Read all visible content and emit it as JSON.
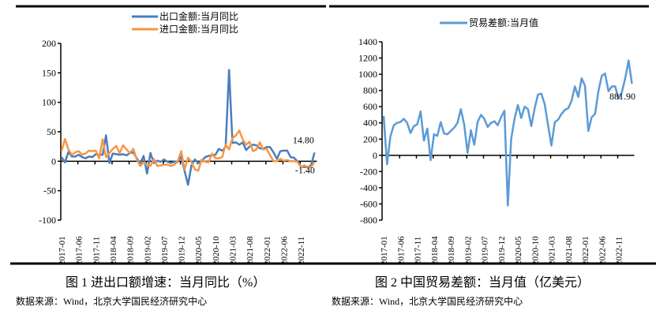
{
  "chart_data": [
    {
      "type": "line",
      "title": "图 1 进出口额增速：当月同比（%）",
      "source": "数据来源：Wind，北京大学国民经济研究中心",
      "ylim": [
        -100,
        200
      ],
      "yticks": [
        "200",
        "150",
        "100",
        "50",
        "0",
        "-50",
        "-100"
      ],
      "ytick_values": [
        200,
        150,
        100,
        50,
        0,
        -50,
        -100
      ],
      "xticks": [
        "2017-01",
        "2017-06",
        "2017-11",
        "2018-04",
        "2018-09",
        "2019-02",
        "2019-07",
        "2019-12",
        "2020-05",
        "2020-10",
        "2021-03",
        "2021-08",
        "2022-01",
        "2022-06",
        "2022-11"
      ],
      "x_start": "2017-01",
      "x_end": "2023-03",
      "legend_position": "top-center",
      "series": [
        {
          "name": "出口金额:当月同比",
          "color": "#4a7ebb",
          "end_label": "14.80",
          "values": [
            7,
            -2,
            16,
            8,
            8,
            11,
            7,
            5,
            8,
            7,
            12,
            11,
            11,
            44,
            -3,
            13,
            12,
            11,
            12,
            10,
            14,
            15,
            5,
            -4,
            9,
            -21,
            14,
            -3,
            1,
            -1,
            3,
            -1,
            -3,
            -1,
            -1,
            8,
            -17,
            -40,
            -7,
            3,
            -3,
            0,
            7,
            9,
            10,
            11,
            21,
            18,
            24,
            155,
            31,
            32,
            28,
            32,
            19,
            25,
            28,
            27,
            22,
            21,
            24,
            24,
            15,
            4,
            17,
            18,
            18,
            7,
            6,
            -0.3,
            -9,
            -10,
            -10,
            -7,
            14.8
          ]
        },
        {
          "name": "进口金额:当月同比",
          "color": "#f79646",
          "end_label": "-1.40",
          "values": [
            17,
            38,
            20,
            11,
            15,
            17,
            11,
            13,
            18,
            17,
            18,
            5,
            37,
            7,
            14,
            21,
            26,
            14,
            27,
            20,
            14,
            21,
            3,
            -8,
            -2,
            -5,
            -8,
            4,
            -8,
            -7,
            -6,
            -6,
            -8,
            -6,
            0,
            17,
            -14,
            6,
            -1,
            -14,
            -16,
            3,
            -1,
            -2,
            13,
            5,
            5,
            7,
            28,
            20,
            39,
            44,
            52,
            37,
            28,
            33,
            17,
            20,
            32,
            20,
            21,
            10,
            0,
            0,
            4,
            1,
            2,
            0,
            0,
            -1,
            -10,
            -7,
            -10,
            -10,
            -1.4
          ]
        }
      ]
    },
    {
      "type": "line",
      "title": "图 2 中国贸易差额：当月值（亿美元）",
      "source": "数据来源：Wind，北京大学国民经济研究中心",
      "ylim": [
        -800,
        1400
      ],
      "yticks": [
        "1400",
        "1200",
        "1000",
        "800",
        "600",
        "400",
        "200",
        "0",
        "-200",
        "-400",
        "-600",
        "-800"
      ],
      "ytick_values": [
        1400,
        1200,
        1000,
        800,
        600,
        400,
        200,
        0,
        -200,
        -400,
        -600,
        -800
      ],
      "xticks": [
        "2017-01",
        "2017-06",
        "2017-11",
        "2018-04",
        "2018-09",
        "2019-02",
        "2019-07",
        "2019-12",
        "2020-05",
        "2020-10",
        "2021-03",
        "2021-08",
        "2022-01",
        "2022-06",
        "2022-11"
      ],
      "x_start": "2017-01",
      "x_end": "2023-03",
      "legend_position": "top-center",
      "series": [
        {
          "name": "贸易差额:当月值",
          "color": "#5b9bd5",
          "end_label": "881.90",
          "values": [
            485,
            -110,
            230,
            370,
            400,
            410,
            450,
            400,
            275,
            360,
            380,
            540,
            180,
            330,
            -60,
            260,
            240,
            410,
            270,
            260,
            300,
            340,
            400,
            570,
            380,
            30,
            310,
            130,
            410,
            500,
            450,
            350,
            400,
            420,
            370,
            470,
            550,
            -620,
            200,
            450,
            620,
            460,
            600,
            570,
            360,
            580,
            750,
            760,
            630,
            370,
            120,
            410,
            440,
            510,
            560,
            580,
            670,
            850,
            720,
            950,
            860,
            300,
            470,
            510,
            790,
            980,
            1010,
            790,
            850,
            850,
            700,
            780,
            950,
            1170,
            881.9
          ]
        }
      ]
    }
  ]
}
